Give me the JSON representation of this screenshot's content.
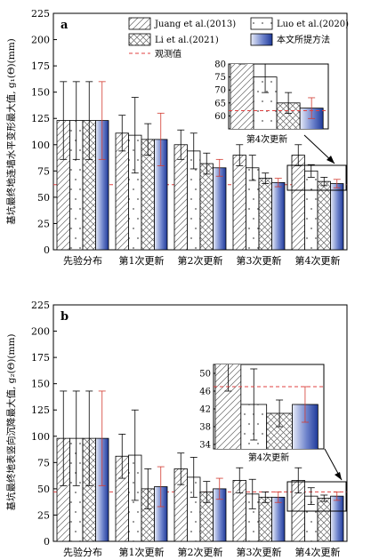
{
  "legend": {
    "juang": "Juang et al.(2013)",
    "luo": "Luo et al.(2020)",
    "li": "Li et al.(2021)",
    "proposed": "本文所提方法",
    "observed": "观测值"
  },
  "colors": {
    "proposed_dark": "#1f3a9a",
    "proposed_light": "#e8ecf8",
    "errorbar_proposed": "#d23a30",
    "observed_line": "#e04040"
  },
  "chart_data": [
    {
      "panel": "a",
      "type": "bar",
      "ylabel": "基坑最终地连墙水平变形最大值, g₁(Θ)(mm)",
      "ylim": [
        0,
        225
      ],
      "yticks": [
        0,
        25,
        50,
        75,
        100,
        125,
        150,
        175,
        200,
        225
      ],
      "categories": [
        "先验分布",
        "第1次更新",
        "第2次更新",
        "第3次更新",
        "第4次更新"
      ],
      "observed": 62,
      "series": [
        {
          "name": "Juang et al.(2013)",
          "values": [
            123,
            111,
            100,
            90,
            90
          ],
          "errors": [
            37,
            17,
            14,
            10,
            10
          ]
        },
        {
          "name": "Luo et al.(2020)",
          "values": [
            123,
            109,
            94,
            78,
            75
          ],
          "errors": [
            37,
            36,
            17,
            12,
            6
          ]
        },
        {
          "name": "Li et al.(2021)",
          "values": [
            123,
            105,
            82,
            68,
            65
          ],
          "errors": [
            37,
            15,
            10,
            5,
            4
          ]
        },
        {
          "name": "本文所提方法",
          "values": [
            123,
            105,
            78,
            64,
            63
          ],
          "errors": [
            37,
            25,
            8,
            4,
            4
          ]
        }
      ],
      "inset": {
        "title": "第4次更新",
        "ylim": [
          55,
          80
        ],
        "yticks": [
          60,
          65,
          70,
          75,
          80
        ]
      }
    },
    {
      "panel": "b",
      "type": "bar",
      "ylabel": "基坑最终地表竖向沉降最大值, g₂(Θ)(mm)",
      "ylim": [
        0,
        225
      ],
      "yticks": [
        0,
        25,
        50,
        75,
        100,
        125,
        150,
        175,
        200,
        225
      ],
      "categories": [
        "先验分布",
        "第1次更新",
        "第2次更新",
        "第3次更新",
        "第4次更新"
      ],
      "observed": 47,
      "series": [
        {
          "name": "Juang et al.(2013)",
          "values": [
            98,
            81,
            69,
            58,
            58
          ],
          "errors": [
            45,
            21,
            15,
            12,
            12
          ]
        },
        {
          "name": "Luo et al.(2020)",
          "values": [
            98,
            82,
            61,
            45,
            43
          ],
          "errors": [
            45,
            43,
            19,
            14,
            8
          ]
        },
        {
          "name": "Li et al.(2021)",
          "values": [
            98,
            50,
            47,
            42,
            41
          ],
          "errors": [
            45,
            19,
            10,
            5,
            3
          ]
        },
        {
          "name": "本文所提方法",
          "values": [
            98,
            52,
            50,
            42,
            43
          ],
          "errors": [
            45,
            19,
            10,
            5,
            4
          ]
        }
      ],
      "inset": {
        "title": "第4次更新",
        "ylim": [
          33,
          52
        ],
        "yticks": [
          34,
          38,
          42,
          46,
          50
        ]
      }
    }
  ]
}
